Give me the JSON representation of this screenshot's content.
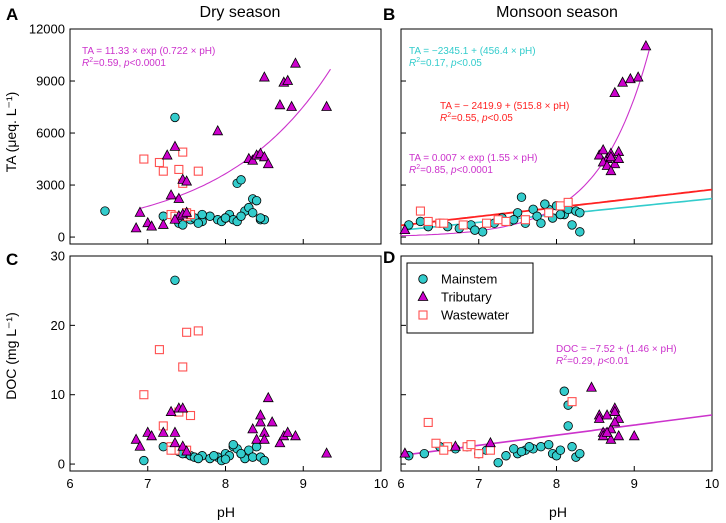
{
  "colors": {
    "mainstem_fill": "#33CCCC",
    "tributary_fill": "#CC00CC",
    "wastewater_edge": "#FF5050",
    "fit_magenta": "#CC33CC",
    "fit_cyan": "#33CCCC",
    "fit_red": "#FF2222",
    "axis": "#000000"
  },
  "chart_data": [
    {
      "id": "A",
      "type": "scatter",
      "title": "Dry season",
      "ylabel": "TA (μeq. L⁻¹)",
      "xlim": [
        6,
        10
      ],
      "ylim": [
        -400,
        12000
      ],
      "yticks": [
        0,
        3000,
        6000,
        9000,
        12000
      ],
      "series": [
        {
          "name": "Mainstem",
          "x": [
            6.45,
            7.2,
            7.35,
            7.4,
            7.5,
            7.55,
            7.6,
            7.7,
            7.8,
            7.9,
            7.95,
            8.0,
            8.05,
            8.1,
            8.15,
            8.2,
            8.25,
            8.3,
            8.35,
            8.4,
            8.45,
            8.5,
            8.15,
            8.2,
            7.45,
            7.7,
            8.0,
            8.35,
            8.45,
            7.65
          ],
          "y": [
            1500,
            1200,
            6900,
            800,
            1400,
            1000,
            1100,
            900,
            1200,
            1000,
            900,
            1100,
            1300,
            1000,
            3100,
            3300,
            1500,
            1700,
            2200,
            2100,
            1000,
            1000,
            900,
            1200,
            700,
            1300,
            1100,
            1400,
            1100,
            800
          ]
        },
        {
          "name": "Tributary",
          "x": [
            6.85,
            6.9,
            7.0,
            7.05,
            7.2,
            7.3,
            7.35,
            7.4,
            7.45,
            7.5,
            7.4,
            7.45,
            7.5,
            7.9,
            8.3,
            8.35,
            8.4,
            8.45,
            8.5,
            8.5,
            8.55,
            8.7,
            8.75,
            8.8,
            8.85,
            8.9,
            9.3,
            7.35,
            7.25
          ],
          "y": [
            500,
            1400,
            800,
            600,
            700,
            2400,
            5200,
            2200,
            3300,
            3200,
            1200,
            1300,
            1400,
            6100,
            4500,
            4400,
            4700,
            4800,
            9200,
            4600,
            4200,
            7600,
            8900,
            9000,
            7500,
            10000,
            7500,
            1000,
            4700
          ]
        },
        {
          "name": "Wastewater",
          "x": [
            6.95,
            7.15,
            7.2,
            7.3,
            7.4,
            7.45,
            7.5,
            7.55,
            7.5,
            7.35,
            7.65,
            7.45
          ],
          "y": [
            4500,
            4300,
            3800,
            1300,
            3900,
            4900,
            1200,
            1300,
            1400,
            1200,
            3800,
            3100
          ]
        }
      ],
      "fits": [
        {
          "series": "Tributary",
          "kind": "exp",
          "a": 11.33,
          "b": 0.722,
          "x_range": [
            6.9,
            9.35
          ],
          "line1": "TA = 11.33 × exp (0.722 × pH)",
          "line2_lead": "R",
          "line2_sup": "2",
          "line2_rest": "=0.59, ",
          "line2_p": "p",
          "line2_tail": "<0.0001"
        }
      ]
    },
    {
      "id": "B",
      "type": "scatter",
      "title": "Monsoon season",
      "ylabel": "",
      "xlim": [
        6,
        10
      ],
      "ylim": [
        -400,
        12000
      ],
      "yticks": [
        0,
        3000,
        6000,
        9000,
        12000
      ],
      "series": [
        {
          "name": "Mainstem",
          "x": [
            6.1,
            6.25,
            6.35,
            6.5,
            6.6,
            6.75,
            6.9,
            7.05,
            7.2,
            7.3,
            7.4,
            7.5,
            7.55,
            7.6,
            7.7,
            7.75,
            7.8,
            7.9,
            7.95,
            8.0,
            8.1,
            8.15,
            8.2,
            8.25,
            8.3,
            6.95,
            7.45,
            7.85,
            8.05,
            8.3
          ],
          "y": [
            700,
            900,
            600,
            800,
            600,
            500,
            700,
            300,
            800,
            1100,
            900,
            1400,
            2300,
            800,
            1600,
            1200,
            800,
            1600,
            1100,
            1800,
            1300,
            1600,
            700,
            1500,
            1400,
            400,
            1000,
            1900,
            1300,
            300
          ]
        },
        {
          "name": "Tributary",
          "x": [
            6.05,
            8.55,
            8.6,
            8.65,
            8.7,
            8.75,
            8.8,
            8.6,
            8.7,
            8.85,
            8.75,
            8.95,
            9.05,
            9.15,
            8.8,
            8.65,
            8.7
          ],
          "y": [
            400,
            4700,
            5000,
            4500,
            4800,
            4200,
            4900,
            4300,
            4600,
            8900,
            8300,
            9100,
            9200,
            11000,
            4500,
            4100,
            3800
          ]
        },
        {
          "name": "Wastewater",
          "x": [
            6.25,
            6.5,
            6.8,
            7.1,
            7.25,
            7.35,
            7.6,
            7.9,
            8.05,
            8.15,
            6.35,
            6.55
          ],
          "y": [
            1500,
            800,
            700,
            800,
            1000,
            900,
            1000,
            1400,
            1800,
            2000,
            900,
            800
          ]
        }
      ],
      "fits": [
        {
          "series": "Mainstem",
          "kind": "linear",
          "a": -2345.1,
          "b": 456.4,
          "x_range": [
            6.0,
            10.0
          ],
          "line1": "TA = −2345.1 + (456.4 × pH)",
          "line2_lead": "R",
          "line2_sup": "2",
          "line2_rest": "=0.17, ",
          "line2_p": "p",
          "line2_tail": "<0.05"
        },
        {
          "series": "Wastewater",
          "kind": "linear",
          "a": -2419.9,
          "b": 515.8,
          "x_range": [
            6.0,
            10.0
          ],
          "line1": "TA = − 2419.9 + (515.8 × pH)",
          "line2_lead": "R",
          "line2_sup": "2",
          "line2_rest": "=0.55, ",
          "line2_p": "p",
          "line2_tail": "<0.05"
        },
        {
          "series": "Tributary",
          "kind": "exp",
          "a": 0.007,
          "b": 1.55,
          "x_range": [
            6.0,
            9.2
          ],
          "line1": "TA = 0.007 × exp (1.55 × pH)",
          "line2_lead": "R",
          "line2_sup": "2",
          "line2_rest": "=0.85, ",
          "line2_p": "p",
          "line2_tail": "<0.0001"
        }
      ]
    },
    {
      "id": "C",
      "type": "scatter",
      "title": "",
      "ylabel": "DOC (mg L⁻¹)",
      "xlabel": "pH",
      "xlim": [
        6,
        10
      ],
      "ylim": [
        -1,
        30
      ],
      "yticks": [
        0,
        10,
        20,
        30
      ],
      "series": [
        {
          "name": "Mainstem",
          "x": [
            6.95,
            7.2,
            7.35,
            7.4,
            7.5,
            7.55,
            7.6,
            7.7,
            7.8,
            7.9,
            7.95,
            8.0,
            8.05,
            8.1,
            8.15,
            8.2,
            8.25,
            8.3,
            8.35,
            8.4,
            8.45,
            8.5,
            7.45,
            7.65,
            8.1,
            8.2,
            7.85,
            8.0
          ],
          "y": [
            0.5,
            2.5,
            26.5,
            1.8,
            1.5,
            1.2,
            1.0,
            1.2,
            0.8,
            1.0,
            0.5,
            1.5,
            1.2,
            2.5,
            2.2,
            1.5,
            0.8,
            2.0,
            1.0,
            2.5,
            1.0,
            0.5,
            1.5,
            0.8,
            2.8,
            1.5,
            1.2,
            0.7
          ]
        },
        {
          "name": "Tributary",
          "x": [
            6.85,
            6.9,
            7.0,
            7.05,
            7.2,
            7.3,
            7.35,
            7.4,
            7.45,
            7.5,
            7.45,
            8.35,
            8.4,
            8.45,
            8.5,
            8.55,
            8.6,
            8.7,
            8.75,
            8.8,
            8.9,
            9.3,
            8.45,
            8.5,
            7.35
          ],
          "y": [
            3.5,
            2.5,
            4.5,
            4,
            4.5,
            7.5,
            4.5,
            8,
            2.5,
            1.8,
            8,
            5,
            3.5,
            6,
            4.5,
            9.5,
            6,
            3,
            4,
            4.5,
            4,
            1.5,
            7,
            3.5,
            3
          ]
        },
        {
          "name": "Wastewater",
          "x": [
            6.95,
            7.15,
            7.2,
            7.3,
            7.4,
            7.45,
            7.5,
            7.55,
            7.5,
            7.35,
            7.65,
            7.3
          ],
          "y": [
            10,
            16.5,
            5.5,
            2.5,
            7.5,
            14,
            2,
            7,
            19,
            2,
            19.2,
            2
          ]
        }
      ],
      "fits": []
    },
    {
      "id": "D",
      "type": "scatter",
      "title": "",
      "ylabel": "",
      "xlabel": "pH",
      "xlim": [
        6,
        10
      ],
      "ylim": [
        -1,
        30
      ],
      "yticks": [
        0,
        10,
        20,
        30
      ],
      "legend": {
        "placement": "top-left",
        "entries": [
          "Mainstem",
          "Tributary",
          "Wastewater"
        ]
      },
      "series": [
        {
          "name": "Mainstem",
          "x": [
            6.1,
            6.3,
            6.5,
            6.7,
            6.85,
            7.0,
            7.1,
            7.25,
            7.35,
            7.5,
            7.6,
            7.7,
            7.8,
            7.9,
            7.95,
            8.0,
            8.05,
            8.1,
            8.15,
            8.2,
            8.25,
            8.3,
            7.45,
            7.55,
            7.15,
            8.15,
            7.65
          ],
          "y": [
            1.2,
            1.5,
            2.5,
            2.2,
            2.5,
            1.5,
            2.0,
            0.2,
            1.2,
            1.5,
            2.0,
            2.2,
            2.5,
            2.8,
            1.5,
            1.2,
            2.0,
            10.5,
            5.5,
            2.5,
            1.0,
            1.5,
            2.2,
            1.8,
            2.5,
            8.5,
            2.5
          ]
        },
        {
          "name": "Tributary",
          "x": [
            6.05,
            6.7,
            7.15,
            8.45,
            8.55,
            8.6,
            8.65,
            8.7,
            8.75,
            8.8,
            8.55,
            8.6,
            8.7,
            8.75,
            8.8,
            9.0,
            8.65,
            8.75
          ],
          "y": [
            1.5,
            2.5,
            3,
            11,
            7,
            4.5,
            7,
            5,
            8,
            6.5,
            6.5,
            4,
            3.5,
            7.5,
            4,
            4,
            4.5,
            6
          ]
        },
        {
          "name": "Wastewater",
          "x": [
            6.35,
            6.45,
            6.6,
            6.85,
            7.15,
            7.0,
            6.9,
            8.2,
            6.55
          ],
          "y": [
            6,
            3,
            2.5,
            2.5,
            2,
            1.5,
            2.8,
            9,
            2
          ]
        }
      ],
      "fits": [
        {
          "series": "All",
          "kind": "linear",
          "a": -7.52,
          "b": 1.46,
          "x_range": [
            6.0,
            10.0
          ],
          "line1": "DOC = −7.52 + (1.46 × pH)",
          "line2_lead": "R",
          "line2_sup": "2",
          "line2_rest": "=0.29, ",
          "line2_p": "p",
          "line2_tail": "<0.01"
        }
      ]
    }
  ]
}
